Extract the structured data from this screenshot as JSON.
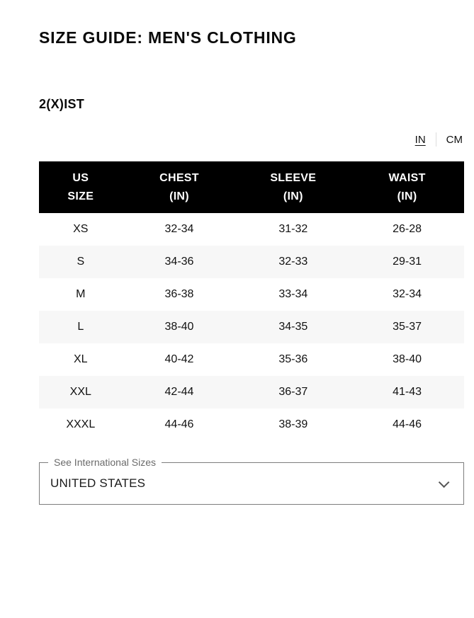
{
  "page": {
    "title": "SIZE GUIDE: MEN'S CLOTHING",
    "brand": "2(X)IST"
  },
  "unit_toggle": {
    "options": [
      {
        "label": "IN",
        "active": true
      },
      {
        "label": "CM",
        "active": false
      }
    ]
  },
  "table": {
    "header": [
      [
        "US",
        "SIZE"
      ],
      [
        "CHEST",
        "(IN)"
      ],
      [
        "SLEEVE",
        "(IN)"
      ],
      [
        "WAIST",
        "(IN)"
      ]
    ],
    "rows": [
      [
        "XS",
        "32-34",
        "31-32",
        "26-28"
      ],
      [
        "S",
        "34-36",
        "32-33",
        "29-31"
      ],
      [
        "M",
        "36-38",
        "33-34",
        "32-34"
      ],
      [
        "L",
        "38-40",
        "34-35",
        "35-37"
      ],
      [
        "XL",
        "40-42",
        "35-36",
        "38-40"
      ],
      [
        "XXL",
        "42-44",
        "36-37",
        "41-43"
      ],
      [
        "XXXL",
        "44-46",
        "38-39",
        "44-46"
      ]
    ]
  },
  "international_selector": {
    "legend": "See International Sizes",
    "value": "UNITED STATES",
    "chevron_icon": "chevron-down"
  },
  "colors": {
    "header_bg": "#000000",
    "header_text": "#ffffff",
    "row_alt_bg": "#f7f7f7",
    "text": "#111111",
    "muted_text": "#6b6b6b",
    "field_border": "#7d7d7d"
  }
}
